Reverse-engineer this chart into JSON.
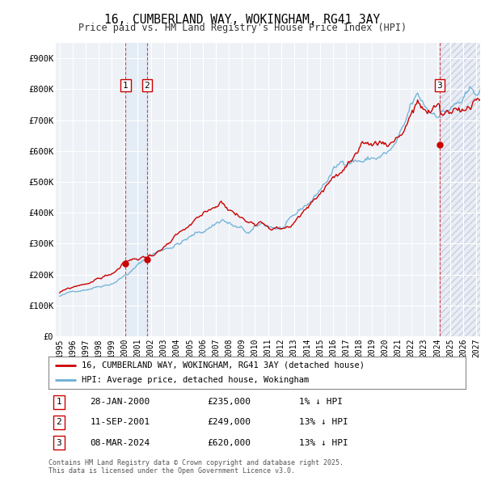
{
  "title": "16, CUMBERLAND WAY, WOKINGHAM, RG41 3AY",
  "subtitle": "Price paid vs. HM Land Registry's House Price Index (HPI)",
  "ylim": [
    0,
    950000
  ],
  "yticks": [
    0,
    100000,
    200000,
    300000,
    400000,
    500000,
    600000,
    700000,
    800000,
    900000
  ],
  "ytick_labels": [
    "£0",
    "£100K",
    "£200K",
    "£300K",
    "£400K",
    "£500K",
    "£600K",
    "£700K",
    "£800K",
    "£900K"
  ],
  "background_color": "#ffffff",
  "plot_bg_color": "#eef2f7",
  "grid_color": "#ffffff",
  "hpi_color": "#6baed6",
  "price_color": "#cc0000",
  "xlim_start": 1994.7,
  "xlim_end": 2027.3,
  "xtick_years": [
    1995,
    1996,
    1997,
    1998,
    1999,
    2000,
    2001,
    2002,
    2003,
    2004,
    2005,
    2006,
    2007,
    2008,
    2009,
    2010,
    2011,
    2012,
    2013,
    2014,
    2015,
    2016,
    2017,
    2018,
    2019,
    2020,
    2021,
    2022,
    2023,
    2024,
    2025,
    2026,
    2027
  ],
  "transactions": [
    {
      "num": 1,
      "date_x": 2000.07,
      "price": 235000,
      "label": "1"
    },
    {
      "num": 2,
      "date_x": 2001.71,
      "price": 249000,
      "label": "2"
    },
    {
      "num": 3,
      "date_x": 2024.18,
      "price": 620000,
      "label": "3"
    }
  ],
  "legend_price_label": "16, CUMBERLAND WAY, WOKINGHAM, RG41 3AY (detached house)",
  "legend_hpi_label": "HPI: Average price, detached house, Wokingham",
  "table_rows": [
    {
      "num": "1",
      "date": "28-JAN-2000",
      "price": "£235,000",
      "hpi": "1% ↓ HPI"
    },
    {
      "num": "2",
      "date": "11-SEP-2001",
      "price": "£249,000",
      "hpi": "13% ↓ HPI"
    },
    {
      "num": "3",
      "date": "08-MAR-2024",
      "price": "£620,000",
      "hpi": "13% ↓ HPI"
    }
  ],
  "footnote": "Contains HM Land Registry data © Crown copyright and database right 2025.\nThis data is licensed under the Open Government Licence v3.0.",
  "shade_between_1_2_color": "#dce8f5",
  "hatch_after_3_color": "#d0d8e8"
}
